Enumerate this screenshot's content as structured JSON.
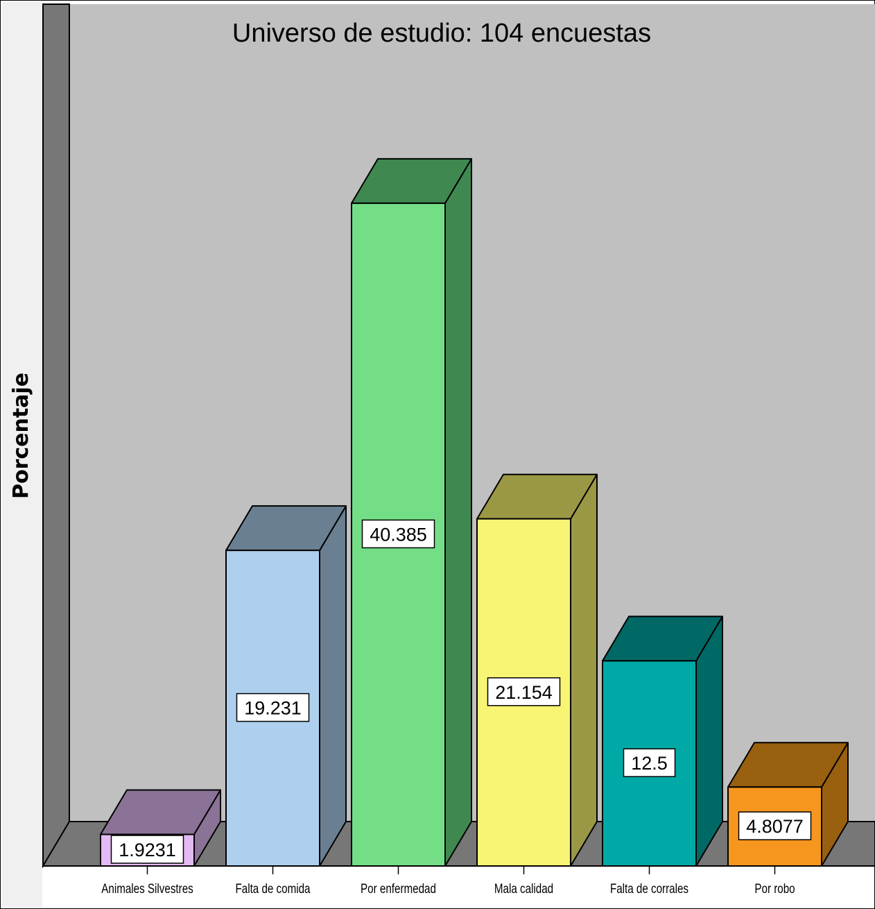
{
  "chart_data": {
    "type": "bar",
    "title": "Universo de estudio: 104 encuestas",
    "xlabel": "",
    "ylabel": "Porcentaje",
    "categories": [
      "Animales Silvestres",
      "Falta de comida",
      "Por enfermedad",
      "Mala calidad",
      "Falta de corrales",
      "Por robo"
    ],
    "values": [
      1.9231,
      19.231,
      40.385,
      21.154,
      12.5,
      4.8077
    ],
    "data_labels": [
      "1.9231",
      "19.231",
      "40.385",
      "21.154",
      "12.5",
      "4.8077"
    ],
    "ylim": [
      0,
      46
    ],
    "grid": false,
    "legend": "none",
    "style": "3d",
    "colors": {
      "front": [
        "#e3baf4",
        "#aed0ee",
        "#74de86",
        "#f8f474",
        "#00a9a5",
        "#f7961f"
      ],
      "top": [
        "#8a7396",
        "#6a8092",
        "#3f8950",
        "#9b9845",
        "#006965",
        "#98600f"
      ],
      "side": [
        "#8a7396",
        "#6a8092",
        "#3f8950",
        "#9b9845",
        "#006965",
        "#98600f"
      ],
      "plot_background": "#c0c0c0",
      "wall": "#777777",
      "floor": "#777777"
    }
  }
}
